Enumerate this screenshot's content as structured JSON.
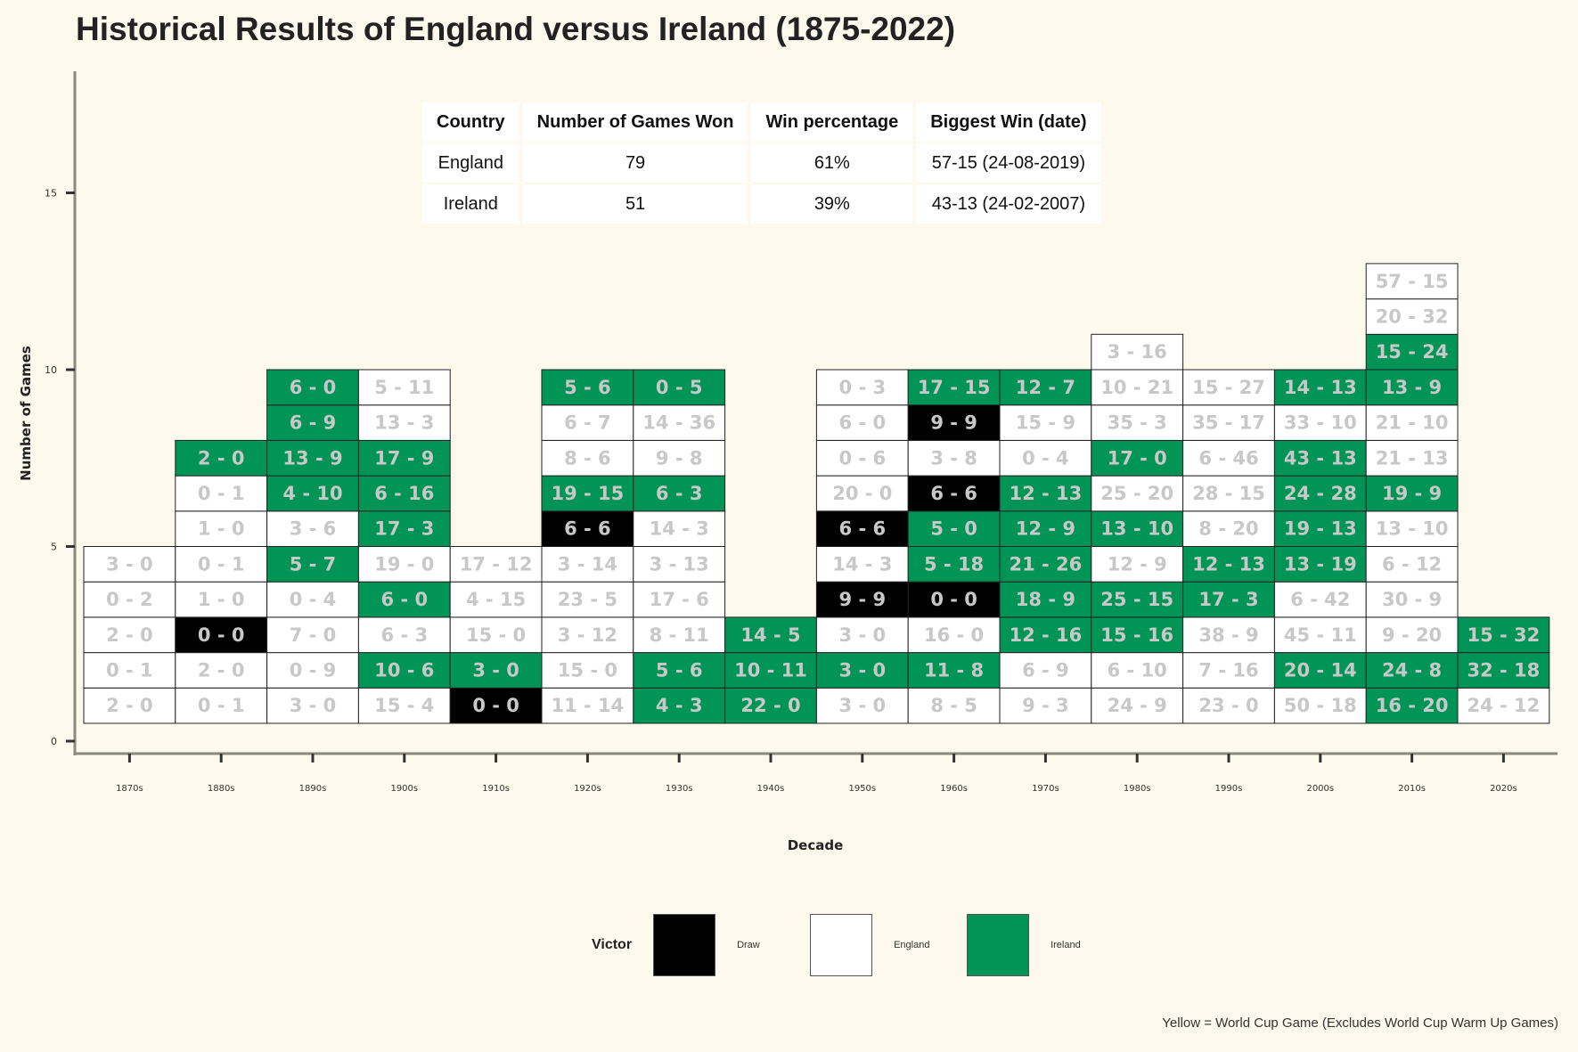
{
  "title": "Historical Results of England versus Ireland (1875-2022)",
  "caption": "Yellow = World Cup Game (Excludes World Cup Warm Up Games)",
  "summary_table": {
    "headers": [
      "Country",
      "Number of Games Won",
      "Win percentage",
      "Biggest Win (date)"
    ],
    "rows": [
      [
        "England",
        "79",
        "61%",
        "57-15 (24-08-2019)"
      ],
      [
        "Ireland",
        "51",
        "39%",
        "43-13 (24-02-2007)"
      ]
    ]
  },
  "legend": {
    "title": "Victor",
    "items": [
      {
        "label": "Draw",
        "color": "#000000"
      },
      {
        "label": "England",
        "color": "#ffffff"
      },
      {
        "label": "Ireland",
        "color": "#009456"
      }
    ]
  },
  "chart_data": {
    "type": "heatmap",
    "title": "Historical Results of England versus Ireland (1875-2022)",
    "xlabel": "Decade",
    "ylabel": "Number of Games",
    "yticks": [
      0,
      5,
      10,
      15
    ],
    "ylim": [
      0,
      19
    ],
    "grid": false,
    "legend_position": "bottom",
    "colors": {
      "Draw": "#000000",
      "England": "#ffffff",
      "Ireland": "#009456",
      "text": "#c8c8c8"
    },
    "decades": [
      {
        "label": "1870s",
        "games": [
          {
            "score": "2 - 0",
            "victor": "England"
          },
          {
            "score": "0 - 1",
            "victor": "England"
          },
          {
            "score": "2 - 0",
            "victor": "England"
          },
          {
            "score": "0 - 2",
            "victor": "England"
          },
          {
            "score": "3 - 0",
            "victor": "England"
          }
        ]
      },
      {
        "label": "1880s",
        "games": [
          {
            "score": "0 - 1",
            "victor": "England"
          },
          {
            "score": "2 - 0",
            "victor": "England"
          },
          {
            "score": "0 - 0",
            "victor": "Draw"
          },
          {
            "score": "1 - 0",
            "victor": "England"
          },
          {
            "score": "0 - 1",
            "victor": "England"
          },
          {
            "score": "1 - 0",
            "victor": "England"
          },
          {
            "score": "0 - 1",
            "victor": "England"
          },
          {
            "score": "2 - 0",
            "victor": "Ireland"
          }
        ]
      },
      {
        "label": "1890s",
        "games": [
          {
            "score": "3 - 0",
            "victor": "England"
          },
          {
            "score": "0 - 9",
            "victor": "England"
          },
          {
            "score": "7 - 0",
            "victor": "England"
          },
          {
            "score": "0 - 4",
            "victor": "England"
          },
          {
            "score": "5 - 7",
            "victor": "Ireland"
          },
          {
            "score": "3 - 6",
            "victor": "England"
          },
          {
            "score": "4 - 10",
            "victor": "Ireland"
          },
          {
            "score": "13 - 9",
            "victor": "Ireland"
          },
          {
            "score": "6 - 9",
            "victor": "Ireland"
          },
          {
            "score": "6 - 0",
            "victor": "Ireland"
          }
        ]
      },
      {
        "label": "1900s",
        "games": [
          {
            "score": "15 - 4",
            "victor": "England"
          },
          {
            "score": "10 - 6",
            "victor": "Ireland"
          },
          {
            "score": "6 - 3",
            "victor": "England"
          },
          {
            "score": "6 - 0",
            "victor": "Ireland"
          },
          {
            "score": "19 - 0",
            "victor": "England"
          },
          {
            "score": "17 - 3",
            "victor": "Ireland"
          },
          {
            "score": "6 - 16",
            "victor": "Ireland"
          },
          {
            "score": "17 - 9",
            "victor": "Ireland"
          },
          {
            "score": "13 - 3",
            "victor": "England"
          },
          {
            "score": "5 - 11",
            "victor": "England"
          }
        ]
      },
      {
        "label": "1910s",
        "games": [
          {
            "score": "0 - 0",
            "victor": "Draw"
          },
          {
            "score": "3 - 0",
            "victor": "Ireland"
          },
          {
            "score": "15 - 0",
            "victor": "England"
          },
          {
            "score": "4 - 15",
            "victor": "England"
          },
          {
            "score": "17 - 12",
            "victor": "England"
          }
        ]
      },
      {
        "label": "1920s",
        "games": [
          {
            "score": "11 - 14",
            "victor": "England"
          },
          {
            "score": "15 - 0",
            "victor": "England"
          },
          {
            "score": "3 - 12",
            "victor": "England"
          },
          {
            "score": "23 - 5",
            "victor": "England"
          },
          {
            "score": "3 - 14",
            "victor": "England"
          },
          {
            "score": "6 - 6",
            "victor": "Draw"
          },
          {
            "score": "19 - 15",
            "victor": "Ireland"
          },
          {
            "score": "8 - 6",
            "victor": "England"
          },
          {
            "score": "6 - 7",
            "victor": "England"
          },
          {
            "score": "5 - 6",
            "victor": "Ireland"
          }
        ]
      },
      {
        "label": "1930s",
        "games": [
          {
            "score": "4 - 3",
            "victor": "Ireland"
          },
          {
            "score": "5 - 6",
            "victor": "Ireland"
          },
          {
            "score": "8 - 11",
            "victor": "England"
          },
          {
            "score": "17 - 6",
            "victor": "England"
          },
          {
            "score": "3 - 13",
            "victor": "England"
          },
          {
            "score": "14 - 3",
            "victor": "England"
          },
          {
            "score": "6 - 3",
            "victor": "Ireland"
          },
          {
            "score": "9 - 8",
            "victor": "England"
          },
          {
            "score": "14 - 36",
            "victor": "England"
          },
          {
            "score": "0 - 5",
            "victor": "Ireland"
          }
        ]
      },
      {
        "label": "1940s",
        "games": [
          {
            "score": "22 - 0",
            "victor": "Ireland"
          },
          {
            "score": "10 - 11",
            "victor": "Ireland"
          },
          {
            "score": "14 - 5",
            "victor": "Ireland"
          }
        ]
      },
      {
        "label": "1950s",
        "games": [
          {
            "score": "3 - 0",
            "victor": "England"
          },
          {
            "score": "3 - 0",
            "victor": "Ireland"
          },
          {
            "score": "3 - 0",
            "victor": "England"
          },
          {
            "score": "9 - 9",
            "victor": "Draw"
          },
          {
            "score": "14 - 3",
            "victor": "England"
          },
          {
            "score": "6 - 6",
            "victor": "Draw"
          },
          {
            "score": "20 - 0",
            "victor": "England"
          },
          {
            "score": "0 - 6",
            "victor": "England"
          },
          {
            "score": "6 - 0",
            "victor": "England"
          },
          {
            "score": "0 - 3",
            "victor": "England"
          }
        ]
      },
      {
        "label": "1960s",
        "games": [
          {
            "score": "8 - 5",
            "victor": "England"
          },
          {
            "score": "11 - 8",
            "victor": "Ireland"
          },
          {
            "score": "16 - 0",
            "victor": "England"
          },
          {
            "score": "0 - 0",
            "victor": "Draw"
          },
          {
            "score": "5 - 18",
            "victor": "Ireland"
          },
          {
            "score": "5 - 0",
            "victor": "Ireland"
          },
          {
            "score": "6 - 6",
            "victor": "Draw"
          },
          {
            "score": "3 - 8",
            "victor": "England"
          },
          {
            "score": "9 - 9",
            "victor": "Draw"
          },
          {
            "score": "17 - 15",
            "victor": "Ireland"
          }
        ]
      },
      {
        "label": "1970s",
        "games": [
          {
            "score": "9 - 3",
            "victor": "England"
          },
          {
            "score": "6 - 9",
            "victor": "England"
          },
          {
            "score": "12 - 16",
            "victor": "Ireland"
          },
          {
            "score": "18 - 9",
            "victor": "Ireland"
          },
          {
            "score": "21 - 26",
            "victor": "Ireland"
          },
          {
            "score": "12 - 9",
            "victor": "Ireland"
          },
          {
            "score": "12 - 13",
            "victor": "Ireland"
          },
          {
            "score": "0 - 4",
            "victor": "England"
          },
          {
            "score": "15 - 9",
            "victor": "England"
          },
          {
            "score": "12 - 7",
            "victor": "Ireland"
          }
        ]
      },
      {
        "label": "1980s",
        "games": [
          {
            "score": "24 - 9",
            "victor": "England"
          },
          {
            "score": "6 - 10",
            "victor": "England"
          },
          {
            "score": "15 - 16",
            "victor": "Ireland"
          },
          {
            "score": "25 - 15",
            "victor": "Ireland"
          },
          {
            "score": "12 - 9",
            "victor": "England"
          },
          {
            "score": "13 - 10",
            "victor": "Ireland"
          },
          {
            "score": "25 - 20",
            "victor": "England"
          },
          {
            "score": "17 - 0",
            "victor": "Ireland"
          },
          {
            "score": "35 - 3",
            "victor": "England"
          },
          {
            "score": "10 - 21",
            "victor": "England"
          },
          {
            "score": "3 - 16",
            "victor": "England"
          }
        ]
      },
      {
        "label": "1990s",
        "games": [
          {
            "score": "23 - 0",
            "victor": "England"
          },
          {
            "score": "7 - 16",
            "victor": "England"
          },
          {
            "score": "38 - 9",
            "victor": "England"
          },
          {
            "score": "17 - 3",
            "victor": "Ireland"
          },
          {
            "score": "12 - 13",
            "victor": "Ireland"
          },
          {
            "score": "8 - 20",
            "victor": "England"
          },
          {
            "score": "28 - 15",
            "victor": "England"
          },
          {
            "score": "6 - 46",
            "victor": "England"
          },
          {
            "score": "35 - 17",
            "victor": "England"
          },
          {
            "score": "15 - 27",
            "victor": "England"
          }
        ]
      },
      {
        "label": "2000s",
        "games": [
          {
            "score": "50 - 18",
            "victor": "England"
          },
          {
            "score": "20 - 14",
            "victor": "Ireland"
          },
          {
            "score": "45 - 11",
            "victor": "England"
          },
          {
            "score": "6 - 42",
            "victor": "England"
          },
          {
            "score": "13 - 19",
            "victor": "Ireland"
          },
          {
            "score": "19 - 13",
            "victor": "Ireland"
          },
          {
            "score": "24 - 28",
            "victor": "Ireland"
          },
          {
            "score": "43 - 13",
            "victor": "Ireland"
          },
          {
            "score": "33 - 10",
            "victor": "England"
          },
          {
            "score": "14 - 13",
            "victor": "Ireland"
          }
        ]
      },
      {
        "label": "2010s",
        "games": [
          {
            "score": "16 - 20",
            "victor": "Ireland"
          },
          {
            "score": "24 - 8",
            "victor": "Ireland"
          },
          {
            "score": "9 - 20",
            "victor": "England"
          },
          {
            "score": "30 - 9",
            "victor": "England"
          },
          {
            "score": "6 - 12",
            "victor": "England"
          },
          {
            "score": "13 - 10",
            "victor": "England"
          },
          {
            "score": "19 - 9",
            "victor": "Ireland"
          },
          {
            "score": "21 - 13",
            "victor": "England"
          },
          {
            "score": "21 - 10",
            "victor": "England"
          },
          {
            "score": "13 - 9",
            "victor": "Ireland"
          },
          {
            "score": "15 - 24",
            "victor": "Ireland"
          },
          {
            "score": "20 - 32",
            "victor": "England"
          },
          {
            "score": "57 - 15",
            "victor": "England"
          }
        ]
      },
      {
        "label": "2020s",
        "games": [
          {
            "score": "24 - 12",
            "victor": "England"
          },
          {
            "score": "32 - 18",
            "victor": "Ireland"
          },
          {
            "score": "15 - 32",
            "victor": "Ireland"
          }
        ]
      }
    ]
  }
}
